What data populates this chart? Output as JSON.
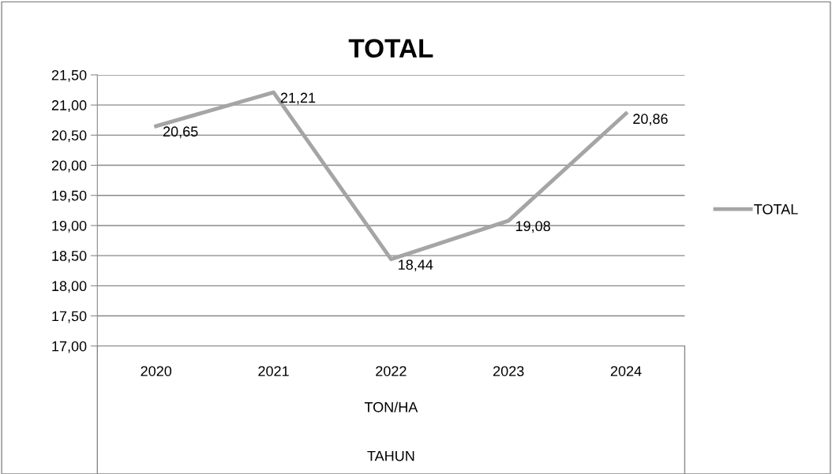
{
  "chart_data": {
    "type": "line",
    "title": "TOTAL",
    "annotations": [
      "TON/HA",
      "TAHUN"
    ],
    "categories": [
      "2020",
      "2021",
      "2022",
      "2023",
      "2024"
    ],
    "series": [
      {
        "name": "TOTAL",
        "color": "#a5a5a5",
        "values": [
          20.65,
          21.21,
          18.44,
          19.08,
          20.86
        ],
        "value_labels": [
          "20,65",
          "21,21",
          "18,44",
          "19,08",
          "20,86"
        ]
      }
    ],
    "ylim": [
      17,
      21.5
    ],
    "yticks": [
      {
        "value": 17,
        "label": "17,00"
      },
      {
        "value": 17.5,
        "label": "17,50"
      },
      {
        "value": 18,
        "label": "18,00"
      },
      {
        "value": 18.5,
        "label": "18,50"
      },
      {
        "value": 19,
        "label": "19,00"
      },
      {
        "value": 19.5,
        "label": "19,50"
      },
      {
        "value": 20,
        "label": "20,00"
      },
      {
        "value": 20.5,
        "label": "20,50"
      },
      {
        "value": 21,
        "label": "21,00"
      },
      {
        "value": 21.5,
        "label": "21,50"
      }
    ],
    "grid": "y",
    "legend": "right",
    "marker": "none",
    "line_style": "solid"
  }
}
